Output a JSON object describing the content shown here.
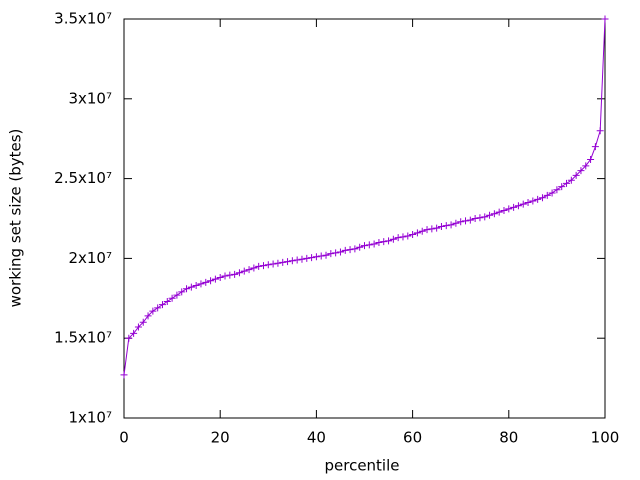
{
  "chart_data": {
    "type": "line",
    "xlabel": "percentile",
    "ylabel": "working set size (bytes)",
    "color": "#9400d3",
    "markers": true,
    "x": [
      0,
      1,
      2,
      3,
      4,
      5,
      6,
      7,
      8,
      9,
      10,
      11,
      12,
      13,
      14,
      15,
      16,
      17,
      18,
      19,
      20,
      21,
      22,
      23,
      24,
      25,
      26,
      27,
      28,
      29,
      30,
      31,
      32,
      33,
      34,
      35,
      36,
      37,
      38,
      39,
      40,
      41,
      42,
      43,
      44,
      45,
      46,
      47,
      48,
      49,
      50,
      51,
      52,
      53,
      54,
      55,
      56,
      57,
      58,
      59,
      60,
      61,
      62,
      63,
      64,
      65,
      66,
      67,
      68,
      69,
      70,
      71,
      72,
      73,
      74,
      75,
      76,
      77,
      78,
      79,
      80,
      81,
      82,
      83,
      84,
      85,
      86,
      87,
      88,
      89,
      90,
      91,
      92,
      93,
      94,
      95,
      96,
      97,
      98,
      99,
      100
    ],
    "values": [
      12700000,
      15000000,
      15300000,
      15700000,
      16000000,
      16400000,
      16700000,
      16900000,
      17100000,
      17300000,
      17500000,
      17700000,
      17900000,
      18100000,
      18200000,
      18300000,
      18400000,
      18500000,
      18600000,
      18700000,
      18800000,
      18900000,
      18950000,
      19000000,
      19100000,
      19200000,
      19300000,
      19400000,
      19500000,
      19550000,
      19600000,
      19650000,
      19700000,
      19750000,
      19800000,
      19850000,
      19900000,
      19950000,
      20000000,
      20050000,
      20100000,
      20150000,
      20200000,
      20300000,
      20350000,
      20400000,
      20500000,
      20550000,
      20600000,
      20700000,
      20800000,
      20850000,
      20900000,
      21000000,
      21050000,
      21100000,
      21200000,
      21300000,
      21350000,
      21400000,
      21500000,
      21600000,
      21700000,
      21800000,
      21850000,
      21900000,
      22000000,
      22050000,
      22100000,
      22200000,
      22300000,
      22350000,
      22400000,
      22500000,
      22550000,
      22600000,
      22700000,
      22800000,
      22900000,
      23000000,
      23100000,
      23200000,
      23300000,
      23400000,
      23500000,
      23600000,
      23700000,
      23800000,
      23950000,
      24100000,
      24300000,
      24500000,
      24700000,
      24900000,
      25200000,
      25500000,
      25800000,
      26200000,
      27000000,
      28000000,
      35000000
    ],
    "xlim": [
      0,
      100
    ],
    "xticks": [
      0,
      20,
      40,
      60,
      80,
      100
    ],
    "ylim": [
      10000000,
      35000000
    ],
    "yticks": [
      {
        "value": 10000000,
        "label": "1x10⁷"
      },
      {
        "value": 15000000,
        "label": "1.5x10⁷"
      },
      {
        "value": 20000000,
        "label": "2x10⁷"
      },
      {
        "value": 25000000,
        "label": "2.5x10⁷"
      },
      {
        "value": 30000000,
        "label": "3x10⁷"
      },
      {
        "value": 35000000,
        "label": "3.5x10⁷"
      }
    ]
  }
}
